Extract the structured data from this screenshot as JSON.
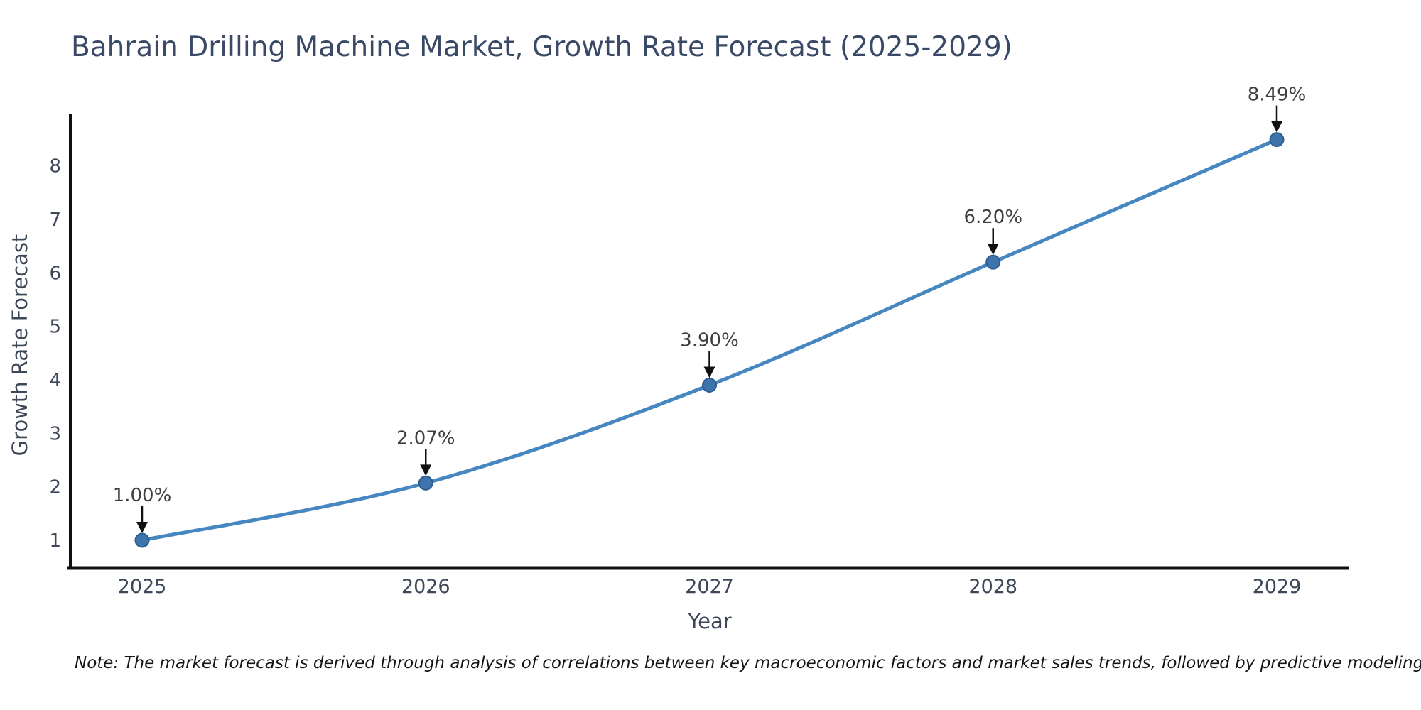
{
  "title": {
    "text": "Bahrain Drilling Machine Market, Growth Rate Forecast (2025-2029)"
  },
  "note": {
    "text": "Note: The market forecast is derived through analysis of correlations between key macroeconomic factors and market sales trends, followed by predictive modeling to project future sales."
  },
  "chart_data": {
    "type": "line",
    "title": "Bahrain Drilling Machine Market, Growth Rate Forecast (2025-2029)",
    "xlabel": "Year",
    "ylabel": "Growth Rate Forecast",
    "x": [
      2025,
      2026,
      2027,
      2028,
      2029
    ],
    "series": [
      {
        "name": "Growth Rate Forecast",
        "values": [
          1.0,
          2.07,
          3.9,
          6.2,
          8.49
        ]
      }
    ],
    "point_labels": [
      "1.00%",
      "2.07%",
      "3.90%",
      "6.20%",
      "8.49%"
    ],
    "yticks": [
      1,
      2,
      3,
      4,
      5,
      6,
      7,
      8
    ],
    "ylim": [
      0.5,
      9.0
    ],
    "grid": false,
    "legend": "none",
    "annotations_have_arrows": true,
    "colors": {
      "line": "#4787c1",
      "marker_fill": "#3c74ab",
      "marker_edge": "#2d5e92",
      "axis_spine": "#111111",
      "tick_label": "#3d4757",
      "annotation_text": "#3f3f3f",
      "annotation_arrow": "#111111",
      "title_text": "#3a4a66"
    }
  }
}
